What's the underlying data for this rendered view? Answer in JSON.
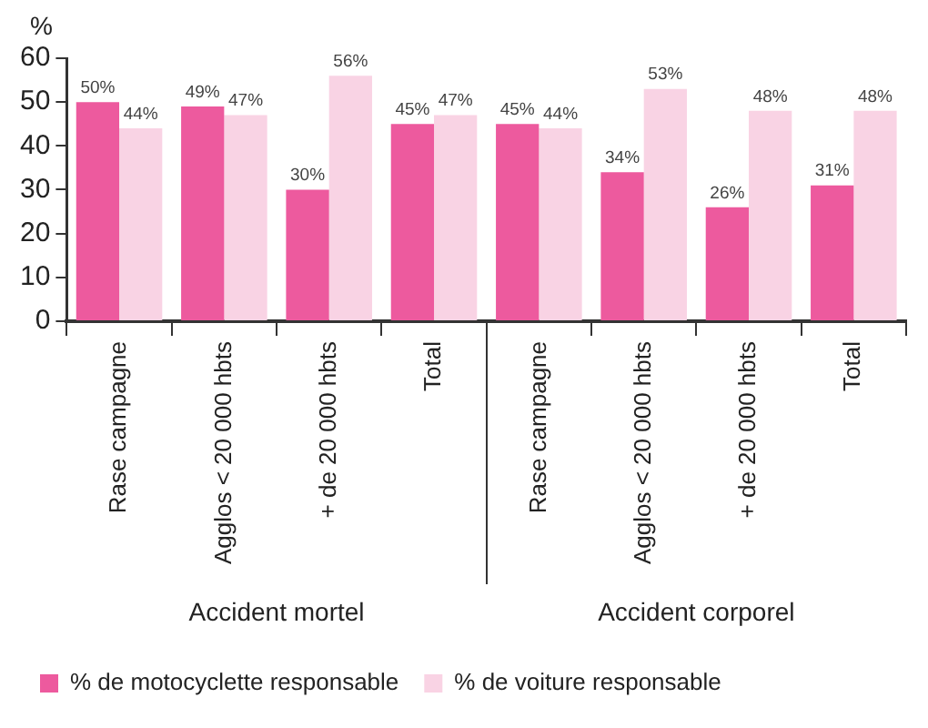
{
  "chart_data": {
    "type": "bar",
    "ylabel": "%",
    "categories": [
      "Rase campagne",
      "Agglos < 20 000 hbts",
      "+ de 20 000 hbts",
      "Total",
      "Rase campagne",
      "Agglos < 20 000 hbts",
      "+ de 20 000 hbts",
      "Total"
    ],
    "series": [
      {
        "name": "% de motocyclette responsable",
        "color": "#ed5a9e",
        "values": [
          50,
          49,
          30,
          45,
          45,
          34,
          26,
          31
        ],
        "value_labels": [
          "50%",
          "49%",
          "30%",
          "45%",
          "45%",
          "34%",
          "26%",
          "31%"
        ]
      },
      {
        "name": "% de voiture responsable",
        "color": "#f9d3e4",
        "values": [
          44,
          47,
          56,
          47,
          44,
          53,
          48,
          48
        ],
        "value_labels": [
          "44%",
          "47%",
          "56%",
          "47%",
          "44%",
          "53%",
          "48%",
          "48%"
        ]
      }
    ],
    "annotations": [
      "Accident mortel",
      "Accident corporel"
    ],
    "ylim": [
      0,
      60
    ],
    "yticks": [
      0,
      10,
      20,
      30,
      40,
      50,
      60
    ],
    "grid": false,
    "legend": "bottom"
  }
}
